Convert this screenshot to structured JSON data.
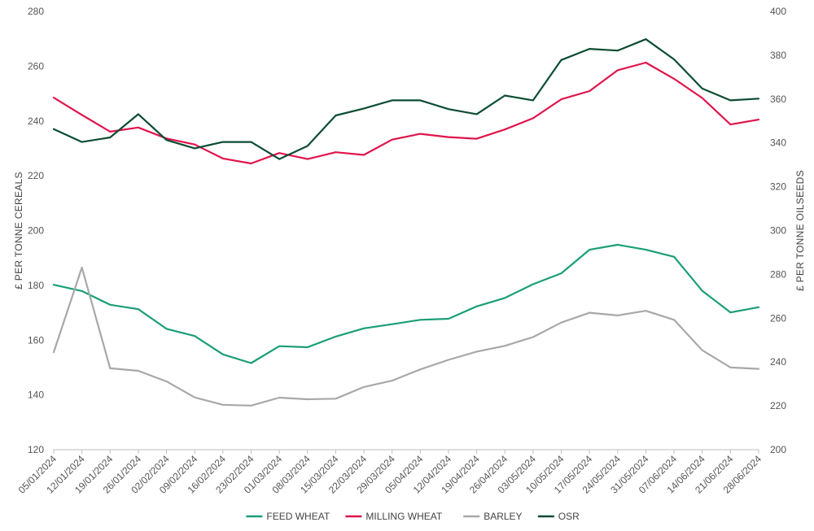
{
  "chart_data": {
    "type": "line",
    "title": "",
    "ylabel_left": "£ PER TONNE CEREALS",
    "ylabel_right": "£ PER TONNE OILSEEDS",
    "ylim_left": [
      120,
      280
    ],
    "ylim_right": [
      200,
      400
    ],
    "yticks_left": [
      "120",
      "140",
      "160",
      "180",
      "200",
      "220",
      "240",
      "260",
      "280"
    ],
    "yticks_right": [
      "200",
      "220",
      "240",
      "260",
      "280",
      "300",
      "320",
      "340",
      "360",
      "380",
      "400"
    ],
    "grid": false,
    "legend_position": "bottom",
    "categories": [
      "05/01/2024",
      "12/01/2024",
      "19/01/2024",
      "26/01/2024",
      "02/02/2024",
      "09/02/2024",
      "16/02/2024",
      "23/02/2024",
      "01/03/2024",
      "08/03/2024",
      "15/03/2024",
      "22/03/2024",
      "29/03/2024",
      "05/04/2024",
      "12/04/2024",
      "19/04/2024",
      "26/04/2024",
      "03/05/2024",
      "10/05/2024",
      "17/05/2024",
      "24/05/2024",
      "31/05/2024",
      "07/06/2024",
      "14/06/2024",
      "21/06/2024",
      "28/06/2024"
    ],
    "series": [
      {
        "name": "FEED WHEAT",
        "axis": "left",
        "color": "#1a9e77",
        "values": [
          180.2,
          177.9,
          172.9,
          171.3,
          164.1,
          161.5,
          154.8,
          151.6,
          157.8,
          157.4,
          161.3,
          164.3,
          165.8,
          167.4,
          167.8,
          172.3,
          175.4,
          180.4,
          184.4,
          193.0,
          194.8,
          193.0,
          190.4,
          178.0,
          170.1,
          172.0
        ]
      },
      {
        "name": "MILLING WHEAT",
        "axis": "left",
        "color": "#e0144c",
        "values": [
          248.5,
          242.2,
          236.1,
          237.6,
          233.6,
          231.4,
          226.3,
          224.5,
          228.3,
          226.1,
          228.6,
          227.6,
          233.2,
          235.3,
          234.1,
          233.5,
          236.9,
          241.0,
          247.9,
          250.9,
          258.5,
          261.3,
          255.4,
          248.4,
          238.7,
          240.5
        ]
      },
      {
        "name": "BARLEY",
        "axis": "left",
        "color": "#a8a8a8",
        "values": [
          155.6,
          186.5,
          149.7,
          148.8,
          144.9,
          139.1,
          136.4,
          136.1,
          139.0,
          138.4,
          138.6,
          142.9,
          145.2,
          149.3,
          152.8,
          155.8,
          157.9,
          161.1,
          166.4,
          170.0,
          169.0,
          170.7,
          167.4,
          156.3,
          150.0,
          149.5
        ]
      },
      {
        "name": "OSR",
        "axis": "right",
        "color": "#0b4d33",
        "values": [
          346.3,
          340.4,
          342.5,
          353.1,
          341.3,
          337.5,
          340.4,
          340.4,
          332.6,
          338.6,
          352.5,
          355.7,
          359.4,
          359.4,
          355.4,
          353.1,
          361.6,
          359.4,
          377.8,
          382.9,
          382.1,
          387.3,
          378.1,
          364.8,
          359.4,
          360.2
        ]
      }
    ]
  }
}
